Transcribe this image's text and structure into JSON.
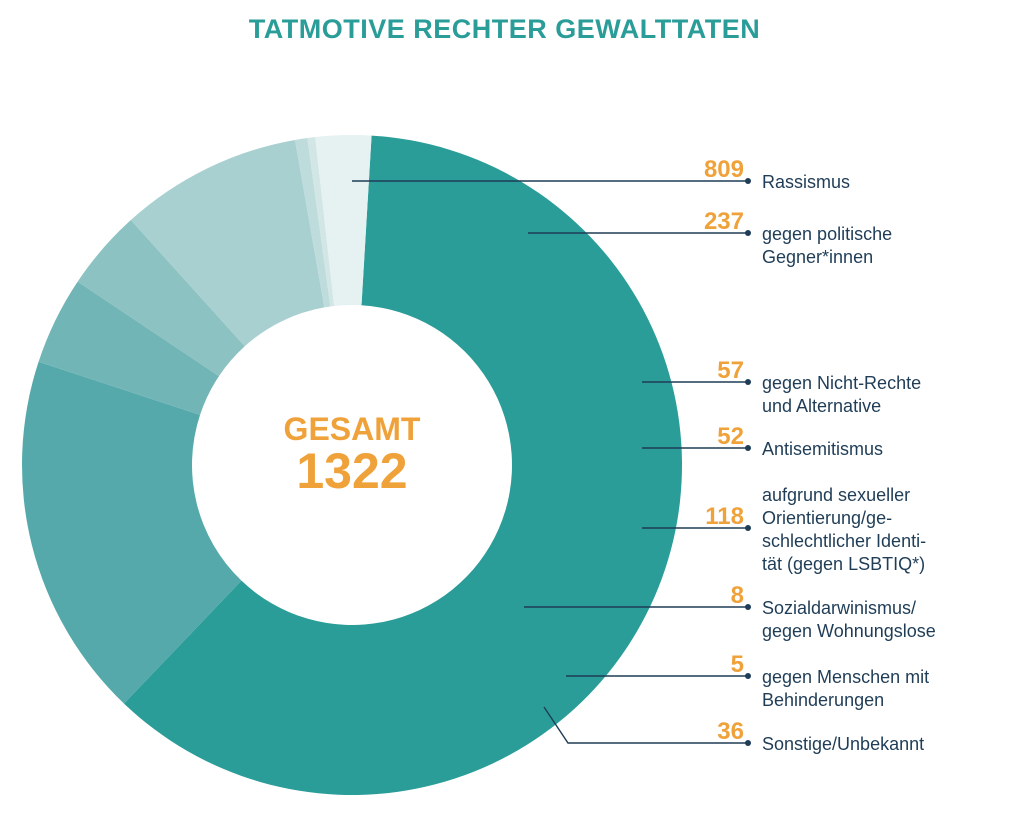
{
  "chart_data": {
    "type": "pie",
    "title": "TATMOTIVE RECHTER GEWALTTATEN",
    "center": {
      "label": "GESAMT",
      "value": "1322"
    },
    "slices": [
      {
        "value": 809,
        "label_lines": [
          "Rassismus"
        ],
        "color": "#2a9d99"
      },
      {
        "value": 237,
        "label_lines": [
          "gegen politische",
          "Gegner*innen"
        ],
        "color": "#55a9ab"
      },
      {
        "value": 57,
        "label_lines": [
          "gegen Nicht-Rechte",
          "und Alternative"
        ],
        "color": "#72b5b6"
      },
      {
        "value": 52,
        "label_lines": [
          "Antisemitismus"
        ],
        "color": "#8cc2c2"
      },
      {
        "value": 118,
        "label_lines": [
          "aufgrund sexueller",
          "Orientierung/ge-",
          "schlechtlicher Identi-",
          "tät (gegen LSBTIQ*)"
        ],
        "color": "#a9d0d0"
      },
      {
        "value": 8,
        "label_lines": [
          "Sozialdarwinismus/",
          "gegen Wohnungslose"
        ],
        "color": "#bfdcdc"
      },
      {
        "value": 5,
        "label_lines": [
          "gegen Menschen mit",
          "Behinderungen"
        ],
        "color": "#d2e6e6"
      },
      {
        "value": 36,
        "label_lines": [
          "Sonstige/Unbekannt"
        ],
        "color": "#e6f1f1"
      }
    ]
  }
}
